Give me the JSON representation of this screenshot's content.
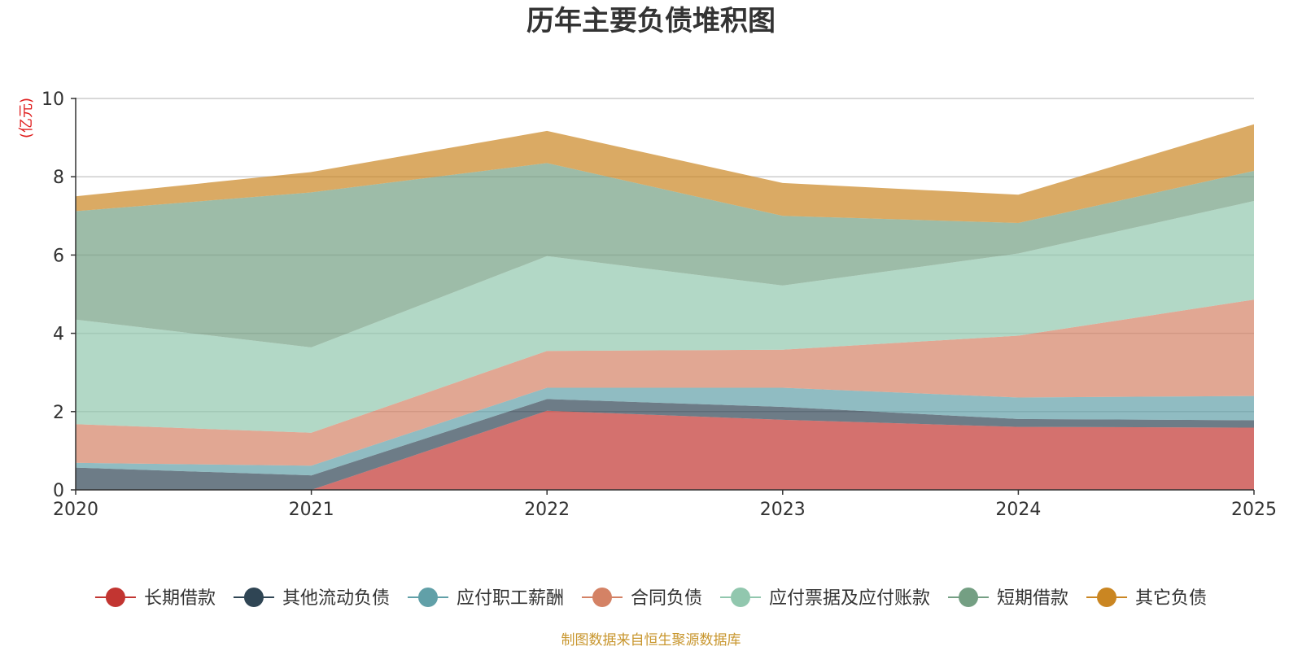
{
  "chart_data": {
    "type": "area",
    "stacked": true,
    "title": "历年主要负债堆积图",
    "unit_label": "(亿元)",
    "x": [
      "2020",
      "2021",
      "2022",
      "2023",
      "2024",
      "2025"
    ],
    "ylim": [
      0,
      10
    ],
    "yticks": [
      "0",
      "2",
      "4",
      "6",
      "8",
      "10"
    ],
    "grid": true,
    "legend_position": "bottom",
    "series": [
      {
        "name": "长期借款",
        "color": "#c23531",
        "values": [
          0,
          0,
          2.02,
          1.79,
          1.61,
          1.59
        ]
      },
      {
        "name": "其他流动负债",
        "color": "#2f4554",
        "values": [
          0.57,
          0.37,
          0.3,
          0.33,
          0.2,
          0.19
        ]
      },
      {
        "name": "应付职工薪酬",
        "color": "#61a0a8",
        "values": [
          0.12,
          0.25,
          0.29,
          0.49,
          0.55,
          0.62
        ]
      },
      {
        "name": "合同负债",
        "color": "#d48265",
        "values": [
          0.99,
          0.84,
          0.94,
          0.97,
          1.58,
          2.46
        ]
      },
      {
        "name": "应付票据及应付账款",
        "color": "#91c7ae",
        "values": [
          2.67,
          2.18,
          2.42,
          1.64,
          2.1,
          2.52
        ]
      },
      {
        "name": "短期借款",
        "color": "#749f83",
        "values": [
          2.77,
          3.96,
          2.38,
          1.78,
          0.78,
          0.77
        ]
      },
      {
        "name": "其它负债",
        "color": "#ca8622",
        "values": [
          0.38,
          0.52,
          0.82,
          0.84,
          0.72,
          1.19
        ]
      }
    ]
  },
  "footer": "制图数据来自恒生聚源数据库"
}
